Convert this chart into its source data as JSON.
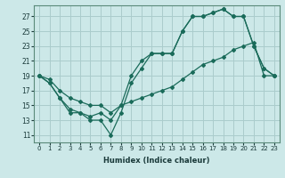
{
  "bg_color": "#cce8e8",
  "grid_color": "#aacccc",
  "line_color": "#1a6b5a",
  "xlabel": "Humidex (Indice chaleur)",
  "xlim": [
    -0.5,
    23.5
  ],
  "ylim": [
    10.0,
    28.5
  ],
  "xticks": [
    0,
    1,
    2,
    3,
    4,
    5,
    6,
    7,
    8,
    9,
    10,
    11,
    12,
    13,
    14,
    15,
    16,
    17,
    18,
    19,
    20,
    21,
    22,
    23
  ],
  "yticks": [
    11,
    13,
    15,
    17,
    19,
    21,
    23,
    25,
    27
  ],
  "line1_x": [
    0,
    1,
    2,
    3,
    4,
    5,
    6,
    7,
    8,
    9,
    10,
    11,
    12,
    13,
    14,
    15,
    16,
    17,
    18,
    19,
    20,
    21,
    22,
    23
  ],
  "line1_y": [
    19,
    18,
    16,
    14,
    14,
    13,
    13,
    11,
    14,
    18,
    20,
    22,
    22,
    22,
    25,
    27,
    27,
    27.5,
    28,
    27,
    27,
    23,
    20,
    19
  ],
  "line2_x": [
    0,
    1,
    2,
    3,
    4,
    5,
    6,
    7,
    8,
    9,
    10,
    11,
    12,
    13,
    14,
    15,
    16,
    17,
    18,
    19,
    20,
    21,
    22,
    23
  ],
  "line2_y": [
    19,
    18,
    16,
    14.5,
    14,
    13.5,
    14,
    13,
    15,
    19,
    21,
    22,
    22,
    22,
    25,
    27,
    27,
    27.5,
    28,
    27,
    27,
    23,
    20,
    19
  ],
  "line3_x": [
    0,
    1,
    2,
    3,
    4,
    5,
    6,
    7,
    8,
    9,
    10,
    11,
    12,
    13,
    14,
    15,
    16,
    17,
    18,
    19,
    20,
    21,
    22,
    23
  ],
  "line3_y": [
    19,
    18.5,
    17,
    16,
    15.5,
    15,
    15,
    14,
    15,
    15.5,
    16,
    16.5,
    17,
    17.5,
    18.5,
    19.5,
    20.5,
    21,
    21.5,
    22.5,
    23,
    23.5,
    19,
    19
  ]
}
